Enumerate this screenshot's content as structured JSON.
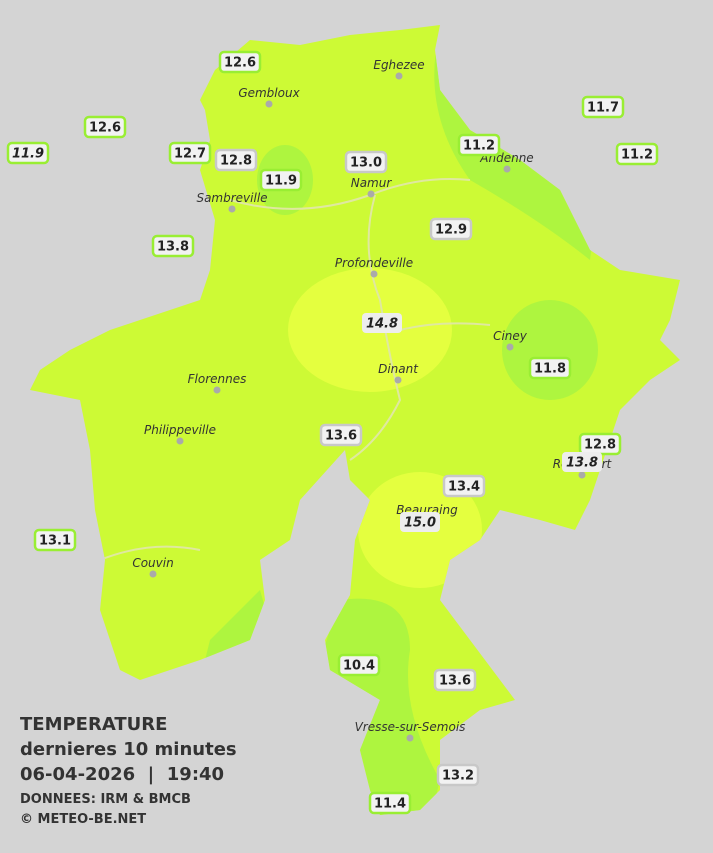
{
  "legend": {
    "title": "TEMPERATURE",
    "subtitle": "dernieres 10 minutes",
    "datetime": "06-04-2026  |  19:40",
    "source": "DONNEES: IRM & BMCB",
    "copyright": "© METEO-BE.NET"
  },
  "cities": [
    "Eghezee",
    "Gembloux",
    "Andenne",
    "Namur",
    "Sambreville",
    "Profondeville",
    "Ciney",
    "Dinant",
    "Florennes",
    "Philippeville",
    "Rochefort",
    "Beauraing",
    "Couvin",
    "Vresse-sur-Semois"
  ],
  "stations": [
    "12.6",
    "12.6",
    "11.9",
    "12.7",
    "12.8",
    "11.9",
    "13.0",
    "11.2",
    "11.7",
    "11.2",
    "13.8",
    "12.9",
    "14.8",
    "11.8",
    "13.6",
    "12.8",
    "13.8",
    "13.4",
    "15.0",
    "13.1",
    "10.4",
    "13.6",
    "13.2",
    "11.4"
  ]
}
